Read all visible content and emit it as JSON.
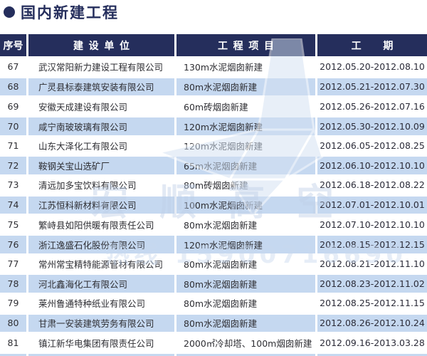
{
  "page_title": {
    "bullet": "●",
    "text": "国内新建工程"
  },
  "table": {
    "columns": [
      {
        "key": "no",
        "label": "序号"
      },
      {
        "key": "company",
        "label": "建设单位"
      },
      {
        "key": "project",
        "label": "工程项目"
      },
      {
        "key": "period",
        "label": "工期"
      }
    ],
    "rows": [
      {
        "no": "67",
        "company": "武汉常阳新力建设工程有限公司",
        "project": "130m水泥烟囱新建",
        "period": "2012.05.20-2012.08.10"
      },
      {
        "no": "68",
        "company": "广灵县标泰建筑安装有限公司",
        "project": "80m水泥烟囱新建",
        "period": "2012.05.21-2012.07.30"
      },
      {
        "no": "69",
        "company": "安徽天成建设有限公司",
        "project": "60m砖烟囱新建",
        "period": "2012.05.26-2012.07.16"
      },
      {
        "no": "70",
        "company": "咸宁南玻玻璃有限公司",
        "project": "120m水泥烟囱新建",
        "period": "2012.05.30-2012.10.09"
      },
      {
        "no": "71",
        "company": "山东大泽化工有限公司",
        "project": "120m水泥烟囱新建",
        "period": "2012.06.05-2012.08.25"
      },
      {
        "no": "72",
        "company": "鞍钢关宝山选矿厂",
        "project": "65m水泥烟囱新建",
        "period": "2012.06.10-2012.10.10"
      },
      {
        "no": "73",
        "company": "清远加多宝饮料有限公司",
        "project": "80m砖烟囱新建",
        "period": "2012.06.18-2012.08.22"
      },
      {
        "no": "74",
        "company": "江苏恒科新材料有限公司",
        "project": "100m水泥烟囱新建",
        "period": "2012.07.01-2012.10.01"
      },
      {
        "no": "75",
        "company": "繁峙县如阳供暖有限责任公司",
        "project": "80m水泥烟囱新建",
        "period": "2012.07.10-2012.10.10"
      },
      {
        "no": "76",
        "company": "浙江逸盛石化股份有限公司",
        "project": "120m水泥烟囱新建",
        "period": "2012.08.15-2012.12.15"
      },
      {
        "no": "77",
        "company": "常州常宝精特能源管材有限公司",
        "project": "80m水泥烟囱新建",
        "period": "2012.08.21-2012.11.10"
      },
      {
        "no": "78",
        "company": "河北鑫海化工有限公司",
        "project": "80m水泥烟囱新建",
        "period": "2012.08.23-2012.11.02"
      },
      {
        "no": "79",
        "company": "莱州鲁通特种纸业有限公司",
        "project": "80m水泥烟囱新建",
        "period": "2012.08.25-2012.11.15"
      },
      {
        "no": "80",
        "company": "甘肃一安装建筑劳务有限公司",
        "project": "80m水泥烟囱新建",
        "period": "2012.08.26-2012.10.24"
      },
      {
        "no": "81",
        "company": "镇江新华电集团有限责任公司",
        "project": "2000㎡冷却塔、100m烟囱新建",
        "period": "2012.09.16-2013.03.28"
      }
    ]
  },
  "watermark": {
    "brand": "宏顺高空",
    "hotline": "热线 15900716690"
  },
  "colors": {
    "navy": "#252e5c",
    "row_alt_blue": "#c5d8f0",
    "body_text": "#2e2e33",
    "watermark_blue": "#c8d8ee",
    "background": "#ffffff"
  }
}
